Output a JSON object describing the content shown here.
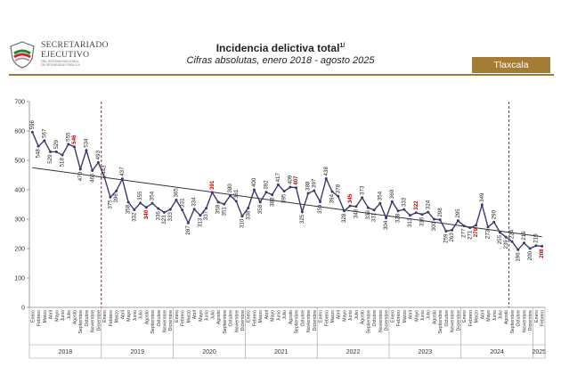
{
  "header": {
    "org_name_line1": "SECRETARIADO",
    "org_name_line2": "EJECUTIVO",
    "org_sub_line1": "DEL SISTEMA NACIONAL",
    "org_sub_line2": "DE SEGURIDAD PÚBLICA",
    "title": "Incidencia delictiva total",
    "title_sup": "1/",
    "subtitle": "Cifras absolutas, enero 2018 - agosto 2025",
    "state": "Tlaxcala"
  },
  "colors": {
    "line": "#3d3a6b",
    "trend": "#333333",
    "highlight": "#c00000",
    "divider": "#c00000",
    "badge": "#a57c33"
  },
  "chart_data": {
    "type": "line",
    "ylim": [
      0,
      700
    ],
    "yticks": [
      0,
      100,
      200,
      300,
      400,
      500,
      600,
      700
    ],
    "grid": false,
    "months": [
      "Enero",
      "Febrero",
      "Marzo",
      "Abril",
      "Mayo",
      "Junio",
      "Julio",
      "Agosto",
      "Septiembre",
      "Octubre",
      "Noviembre",
      "Diciembre"
    ],
    "years": [
      "2018",
      "2019",
      "2020",
      "2021",
      "2022",
      "2023",
      "2024",
      "2025"
    ],
    "divider_after_months": [
      "Diciembre 2018",
      "Agosto 2024"
    ],
    "trend_line": {
      "start": 475,
      "end": 240
    },
    "values": [
      596,
      548,
      567,
      529,
      529,
      518,
      555,
      546,
      470,
      534,
      465,
      493,
      443,
      375,
      396,
      437,
      358,
      332,
      355,
      340,
      354,
      336,
      323,
      333,
      365,
      331,
      287,
      334,
      313,
      337,
      391,
      358,
      351,
      380,
      361,
      310,
      338,
      400,
      358,
      392,
      383,
      417,
      395,
      409,
      407,
      325,
      388,
      397,
      359,
      438,
      394,
      378,
      328,
      345,
      343,
      373,
      339,
      331,
      354,
      304,
      360,
      328,
      333,
      313,
      322,
      316,
      324,
      300,
      298,
      259,
      263,
      295,
      277,
      271,
      279,
      349,
      273,
      290,
      255,
      239,
      224,
      196,
      219,
      200,
      210,
      208
    ],
    "highlighted": [
      7,
      19,
      30,
      44,
      53,
      64,
      74,
      85
    ]
  }
}
